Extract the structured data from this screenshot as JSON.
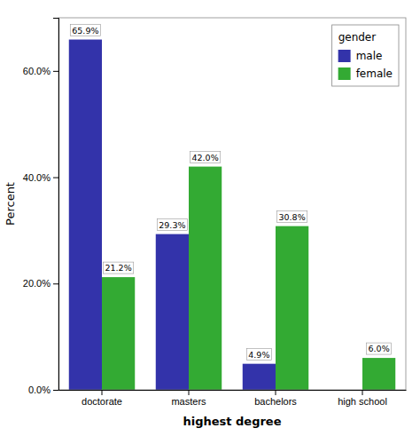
{
  "chart_data": {
    "type": "bar",
    "categories": [
      "doctorate",
      "masters",
      "bachelors",
      "high school"
    ],
    "series": [
      {
        "name": "male",
        "color": "#3333aa",
        "values": [
          65.9,
          29.3,
          4.9,
          0.0
        ],
        "value_labels": [
          "65.9%",
          "29.3%",
          "4.9%",
          null
        ]
      },
      {
        "name": "female",
        "color": "#33aa33",
        "values": [
          21.2,
          42.0,
          30.8,
          6.0
        ],
        "value_labels": [
          "21.2%",
          "42.0%",
          "30.8%",
          "6.0%"
        ]
      }
    ],
    "xlabel": "highest degree",
    "ylabel": "Percent",
    "ylim": [
      0,
      70
    ],
    "yticks": [
      {
        "value": 0.0,
        "label": "0.0%"
      },
      {
        "value": 20.0,
        "label": "20.0%"
      },
      {
        "value": 40.0,
        "label": "40.0%"
      },
      {
        "value": 60.0,
        "label": "60.0%"
      }
    ],
    "legend_title": "gender",
    "legend": "upper right",
    "data_labels": true,
    "grid": false
  }
}
